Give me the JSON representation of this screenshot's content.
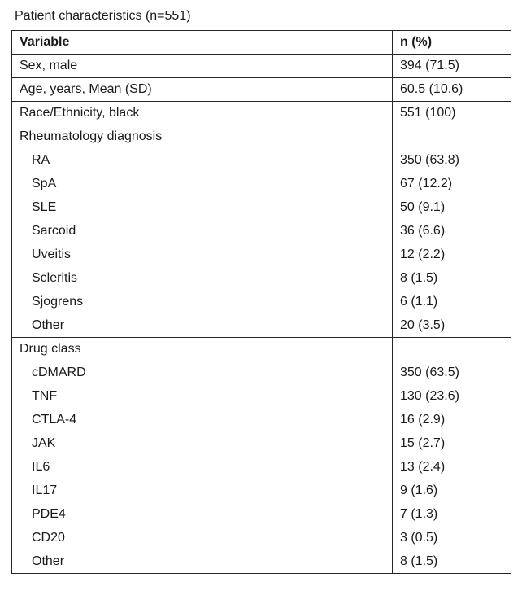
{
  "title": "Patient characteristics (n=551)",
  "table": {
    "headers": [
      "Variable",
      "n (%)"
    ],
    "rows": [
      {
        "type": "plain",
        "label": "Sex, male",
        "value": "394 (71.5)"
      },
      {
        "type": "plain",
        "label": "Age, years, Mean (SD)",
        "value": "60.5 (10.6)"
      },
      {
        "type": "plain",
        "label": "Race/Ethnicity, black",
        "value": "551 (100)"
      },
      {
        "type": "group",
        "label": "Rheumatology diagnosis",
        "value": ""
      },
      {
        "type": "sub",
        "label": "RA",
        "value": "350 (63.8)"
      },
      {
        "type": "sub",
        "label": "SpA",
        "value": "67 (12.2)"
      },
      {
        "type": "sub",
        "label": "SLE",
        "value": "50 (9.1)"
      },
      {
        "type": "sub",
        "label": "Sarcoid",
        "value": "36 (6.6)"
      },
      {
        "type": "sub",
        "label": "Uveitis",
        "value": "12 (2.2)"
      },
      {
        "type": "sub",
        "label": "Scleritis",
        "value": "8 (1.5)"
      },
      {
        "type": "sub",
        "label": "Sjogrens",
        "value": "6 (1.1)"
      },
      {
        "type": "sub",
        "label": "Other",
        "value": "20 (3.5)"
      },
      {
        "type": "group",
        "label": "Drug class",
        "value": ""
      },
      {
        "type": "sub",
        "label": "cDMARD",
        "value": "350 (63.5)"
      },
      {
        "type": "sub",
        "label": "TNF",
        "value": "130 (23.6)"
      },
      {
        "type": "sub",
        "label": "CTLA-4",
        "value": "16 (2.9)"
      },
      {
        "type": "sub",
        "label": "JAK",
        "value": "15 (2.7)"
      },
      {
        "type": "sub",
        "label": "IL6",
        "value": "13 (2.4)"
      },
      {
        "type": "sub",
        "label": "IL17",
        "value": "9 (1.6)"
      },
      {
        "type": "sub",
        "label": "PDE4",
        "value": "7 (1.3)"
      },
      {
        "type": "sub",
        "label": "CD20",
        "value": "3 (0.5)"
      },
      {
        "type": "sub",
        "label": "Other",
        "value": "8 (1.5)"
      }
    ]
  }
}
